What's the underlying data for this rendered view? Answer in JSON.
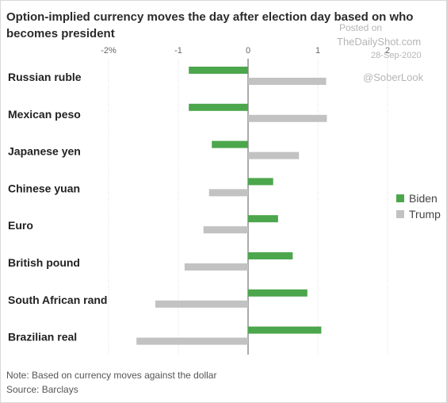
{
  "watermark": {
    "posted": "Posted on",
    "site": "TheDailyShot.com",
    "date": "28-Sep-2020",
    "handle": "@SoberLook"
  },
  "notes": {
    "note": "Note: Based on currency moves against the dollar",
    "source": "Source: Barclays"
  },
  "colors": {
    "biden": "#4ca64c",
    "trump": "#c2c2c2",
    "axis": "#555555",
    "grid": "#dddddd"
  },
  "chart_data": {
    "type": "bar",
    "orientation": "horizontal",
    "title": "Option-implied currency moves the day after election day based on who becomes president",
    "categories": [
      "Russian ruble",
      "Mexican peso",
      "Japanese yen",
      "Chinese yuan",
      "Euro",
      "British pound",
      "South African rand",
      "Brazilian real"
    ],
    "series": [
      {
        "name": "Biden",
        "values": [
          -0.85,
          -0.85,
          -0.52,
          0.36,
          0.43,
          0.64,
          0.85,
          1.05
        ]
      },
      {
        "name": "Trump",
        "values": [
          1.12,
          1.13,
          0.73,
          -0.56,
          -0.64,
          -0.91,
          -1.33,
          -1.6
        ]
      }
    ],
    "xlim": [
      -2,
      2
    ],
    "ticks": [
      -2,
      -1,
      0,
      1,
      2
    ],
    "tick_labels": [
      "-2%",
      "-1",
      "0",
      "1",
      "2"
    ],
    "grid": true,
    "legend_position": "right"
  }
}
